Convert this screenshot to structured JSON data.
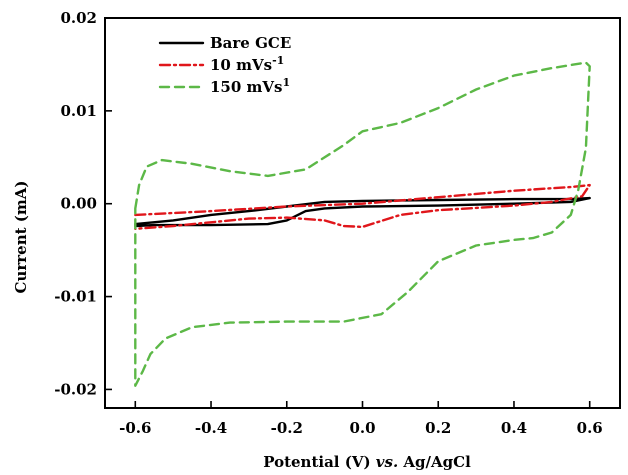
{
  "chart_data": {
    "type": "line",
    "title": "",
    "xlabel": "Potential  (V) vs. Ag/AgCl",
    "xlabel_parts": {
      "main": "Potential  (V) ",
      "italic": "vs.",
      "ref": " Ag/AgCl"
    },
    "ylabel": "Current (mA)",
    "xlim": [
      -0.68,
      0.68
    ],
    "ylim": [
      -0.022,
      0.02
    ],
    "x_ticks": [
      -0.6,
      -0.4,
      -0.2,
      0.0,
      0.2,
      0.4,
      0.6
    ],
    "x_tick_labels": [
      "-0.6",
      "-0.4",
      "-0.2",
      "0.0",
      "0.2",
      "0.4",
      "0.6"
    ],
    "y_ticks": [
      0.02,
      0.01,
      0.0,
      -0.01,
      -0.02
    ],
    "y_tick_labels": [
      "0.02",
      "0.01",
      "0.00",
      "-0.01",
      "-0.02"
    ],
    "grid": false,
    "legend_position": "top-left",
    "legend": [
      {
        "label": "Bare GCE",
        "sup": ""
      },
      {
        "label": "10 mVs",
        "sup": "-1"
      },
      {
        "label": "150 mVs",
        "sup": "1"
      }
    ],
    "series": [
      {
        "name": "Bare GCE",
        "color": "#000000",
        "dash": "solid",
        "points": [
          [
            -0.6,
            -0.0022
          ],
          [
            -0.5,
            -0.0018
          ],
          [
            -0.4,
            -0.0012
          ],
          [
            -0.3,
            -0.0008
          ],
          [
            -0.2,
            -0.0003
          ],
          [
            -0.1,
            0.0002
          ],
          [
            0.0,
            0.0003
          ],
          [
            0.2,
            0.0004
          ],
          [
            0.4,
            0.0005
          ],
          [
            0.55,
            0.0005
          ],
          [
            0.6,
            0.0006
          ],
          [
            0.55,
            0.0002
          ],
          [
            0.4,
            0.0
          ],
          [
            0.2,
            -0.0002
          ],
          [
            0.0,
            -0.0003
          ],
          [
            -0.1,
            -0.0005
          ],
          [
            -0.15,
            -0.0008
          ],
          [
            -0.2,
            -0.0018
          ],
          [
            -0.25,
            -0.0022
          ],
          [
            -0.4,
            -0.0023
          ],
          [
            -0.55,
            -0.0023
          ],
          [
            -0.6,
            -0.0024
          ]
        ]
      },
      {
        "name": "10 mVs-1",
        "color": "#e0161b",
        "dash": "dashdot",
        "points": [
          [
            -0.6,
            -0.0012
          ],
          [
            -0.4,
            -0.0008
          ],
          [
            -0.2,
            -0.0003
          ],
          [
            0.0,
            0.0
          ],
          [
            0.2,
            0.0007
          ],
          [
            0.4,
            0.0014
          ],
          [
            0.55,
            0.0018
          ],
          [
            0.6,
            0.002
          ],
          [
            0.58,
            0.0008
          ],
          [
            0.5,
            0.0002
          ],
          [
            0.4,
            -0.0002
          ],
          [
            0.2,
            -0.0007
          ],
          [
            0.1,
            -0.0012
          ],
          [
            0.0,
            -0.0025
          ],
          [
            -0.05,
            -0.0024
          ],
          [
            -0.1,
            -0.0018
          ],
          [
            -0.2,
            -0.0015
          ],
          [
            -0.3,
            -0.0016
          ],
          [
            -0.4,
            -0.002
          ],
          [
            -0.5,
            -0.0024
          ],
          [
            -0.6,
            -0.0027
          ]
        ]
      },
      {
        "name": "150 mVs1",
        "color": "#5cb847",
        "dash": "dashed",
        "points": [
          [
            -0.6,
            -0.0005
          ],
          [
            -0.59,
            0.002
          ],
          [
            -0.57,
            0.004
          ],
          [
            -0.53,
            0.0047
          ],
          [
            -0.45,
            0.0043
          ],
          [
            -0.35,
            0.0035
          ],
          [
            -0.25,
            0.003
          ],
          [
            -0.15,
            0.0037
          ],
          [
            -0.05,
            0.0063
          ],
          [
            0.0,
            0.0078
          ],
          [
            0.1,
            0.0087
          ],
          [
            0.2,
            0.0103
          ],
          [
            0.3,
            0.0123
          ],
          [
            0.4,
            0.0138
          ],
          [
            0.5,
            0.0146
          ],
          [
            0.59,
            0.0152
          ],
          [
            0.6,
            0.0148
          ],
          [
            0.59,
            0.006
          ],
          [
            0.57,
            0.0015
          ],
          [
            0.55,
            -0.0012
          ],
          [
            0.5,
            -0.0031
          ],
          [
            0.45,
            -0.0037
          ],
          [
            0.4,
            -0.0039
          ],
          [
            0.3,
            -0.0045
          ],
          [
            0.2,
            -0.0062
          ],
          [
            0.12,
            -0.0095
          ],
          [
            0.05,
            -0.0119
          ],
          [
            -0.05,
            -0.0127
          ],
          [
            -0.2,
            -0.0127
          ],
          [
            -0.35,
            -0.0128
          ],
          [
            -0.45,
            -0.0133
          ],
          [
            -0.52,
            -0.0145
          ],
          [
            -0.56,
            -0.0162
          ],
          [
            -0.58,
            -0.018
          ],
          [
            -0.6,
            -0.0196
          ],
          [
            -0.6,
            -0.0005
          ]
        ]
      }
    ]
  }
}
